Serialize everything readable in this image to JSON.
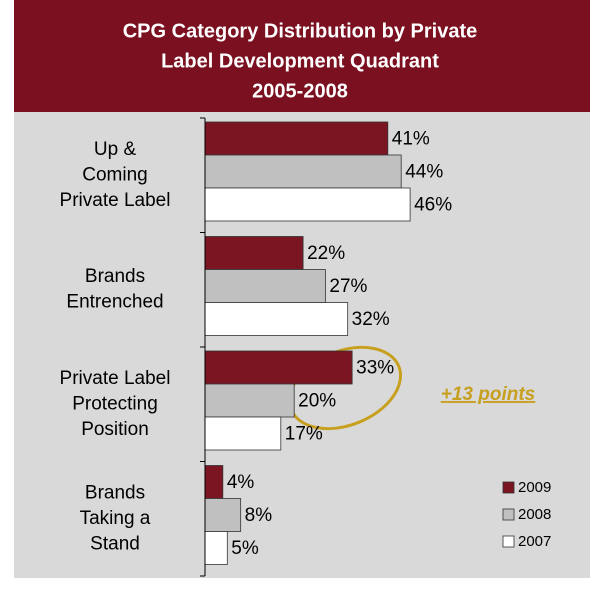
{
  "chart_data": {
    "type": "barh",
    "title": [
      "CPG Category Distribution by Private",
      "Label Development Quadrant",
      "2005-2008"
    ],
    "categories": [
      [
        "Up &",
        "Coming",
        "Private Label"
      ],
      [
        "Brands",
        "Entrenched"
      ],
      [
        "Private Label",
        "Protecting",
        "Position"
      ],
      [
        "Brands",
        "Taking a",
        "Stand"
      ]
    ],
    "series": [
      {
        "name": "2009",
        "color": "#7b1522",
        "values": [
          41,
          22,
          33,
          4
        ],
        "value_labels": [
          "41%",
          "22%",
          "33%",
          "4%"
        ]
      },
      {
        "name": "2008",
        "color": "#c0c0c0",
        "values": [
          44,
          27,
          20,
          8
        ],
        "value_labels": [
          "44%",
          "27%",
          "20%",
          "8%"
        ]
      },
      {
        "name": "2007",
        "color": "#ffffff",
        "values": [
          46,
          32,
          17,
          5
        ],
        "value_labels": [
          "46%",
          "32%",
          "17%",
          "5%"
        ]
      }
    ],
    "xlim": [
      0,
      85
    ],
    "legend": "lower right",
    "annotation": "+13 points"
  }
}
